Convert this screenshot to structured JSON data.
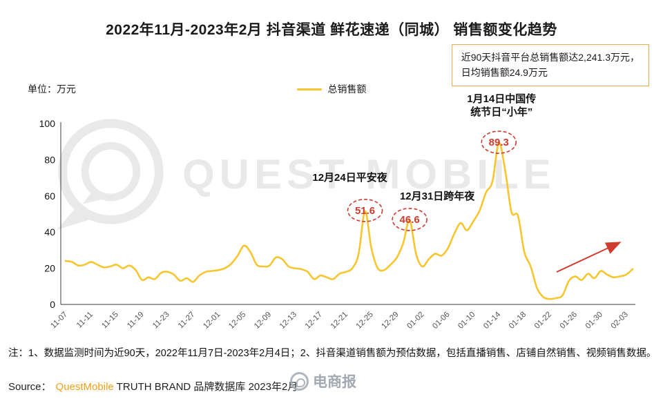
{
  "title": "2022年11月-2023年2月 抖音渠道 鲜花速递（同城） 销售额变化趋势",
  "info_box": {
    "line1": "近90天抖音平台总销售额达2,241.3万元，",
    "line2": "日均销售额24.9万元"
  },
  "unit_label": "单位：万元",
  "legend": {
    "label": "总销售额",
    "color": "#F7C52E"
  },
  "watermark": {
    "brand": "QUEST MOBILE",
    "social": "电商报"
  },
  "notes": "注：1、数据监测时间为近90天，2022年11月7日-2023年2月4日；2、抖音渠道销售额为预估数据，包括直播销售、店铺自然销售、视频销售数据。",
  "source": {
    "prefix": "Source：",
    "brand": "QuestMobile",
    "suffix": "TRUTH BRAND 品牌数据库 2023年2月"
  },
  "chart_data": {
    "type": "line",
    "title": "2022年11月-2023年2月 抖音渠道 鲜花速递（同城） 销售额变化趋势",
    "series_name": "总销售额",
    "unit": "万元",
    "ylim": [
      0,
      100
    ],
    "y_ticks": [
      0,
      20,
      40,
      60,
      80,
      100
    ],
    "grid": false,
    "legend_position": "top-center",
    "line_color": "#F7C52E",
    "annotation_color": "#CF3B2D",
    "dates": [
      "11-07",
      "11-08",
      "11-09",
      "11-10",
      "11-11",
      "11-12",
      "11-13",
      "11-14",
      "11-15",
      "11-16",
      "11-17",
      "11-18",
      "11-19",
      "11-20",
      "11-21",
      "11-22",
      "11-23",
      "11-24",
      "11-25",
      "11-26",
      "11-27",
      "11-28",
      "11-29",
      "11-30",
      "12-01",
      "12-02",
      "12-03",
      "12-04",
      "12-05",
      "12-06",
      "12-07",
      "12-08",
      "12-09",
      "12-10",
      "12-11",
      "12-12",
      "12-13",
      "12-14",
      "12-15",
      "12-16",
      "12-17",
      "12-18",
      "12-19",
      "12-20",
      "12-21",
      "12-22",
      "12-23",
      "12-24",
      "12-25",
      "12-26",
      "12-27",
      "12-28",
      "12-29",
      "12-30",
      "12-31",
      "01-01",
      "01-02",
      "01-03",
      "01-04",
      "01-05",
      "01-06",
      "01-07",
      "01-08",
      "01-09",
      "01-10",
      "01-11",
      "01-12",
      "01-13",
      "01-14",
      "01-15",
      "01-16",
      "01-17",
      "01-18",
      "01-19",
      "01-20",
      "01-21",
      "01-22",
      "01-23",
      "01-24",
      "01-25",
      "01-26",
      "01-27",
      "01-28",
      "01-29",
      "01-30",
      "01-31",
      "02-01",
      "02-02",
      "02-03",
      "02-04"
    ],
    "values": [
      24,
      23.5,
      21.5,
      22,
      23.5,
      22,
      20.5,
      21,
      22,
      20,
      21.5,
      19,
      13.5,
      15,
      14,
      17.5,
      18,
      16.5,
      13,
      14.5,
      12.5,
      16,
      18,
      18.5,
      19,
      20,
      22.5,
      27,
      32.5,
      29,
      22,
      21,
      21.5,
      26,
      25,
      21,
      20,
      19.5,
      18,
      14,
      16,
      15,
      14,
      17,
      18,
      20,
      28,
      51.6,
      31,
      20,
      19,
      22,
      26,
      34,
      46.6,
      28,
      21,
      25,
      28,
      27,
      31,
      39,
      45,
      41,
      46,
      52,
      62,
      68,
      89.3,
      74,
      51,
      49,
      29,
      21,
      9,
      4,
      3,
      3.5,
      5,
      13,
      15.5,
      13.5,
      17,
      14.5,
      18.5,
      16.5,
      15,
      15.5,
      16.5,
      19.5
    ],
    "x_tick_labels": [
      "11-07",
      "11-11",
      "11-15",
      "11-19",
      "11-23",
      "11-27",
      "12-01",
      "12-05",
      "12-09",
      "12-13",
      "12-17",
      "12-21",
      "12-25",
      "12-29",
      "01-02",
      "01-06",
      "01-10",
      "01-14",
      "01-18",
      "01-22",
      "01-26",
      "01-30",
      "02-03"
    ],
    "x_tick_step": 4,
    "annotations": [
      {
        "date": "12-24",
        "value": 51.6,
        "label_lines": [
          "12月24日平安夜"
        ]
      },
      {
        "date": "12-31",
        "value": 46.6,
        "label_lines": [
          "12月31日跨年夜"
        ]
      },
      {
        "date": "01-14",
        "value": 89.3,
        "label_lines": [
          "1月14日中国传",
          "统节日“小年”"
        ]
      }
    ]
  }
}
